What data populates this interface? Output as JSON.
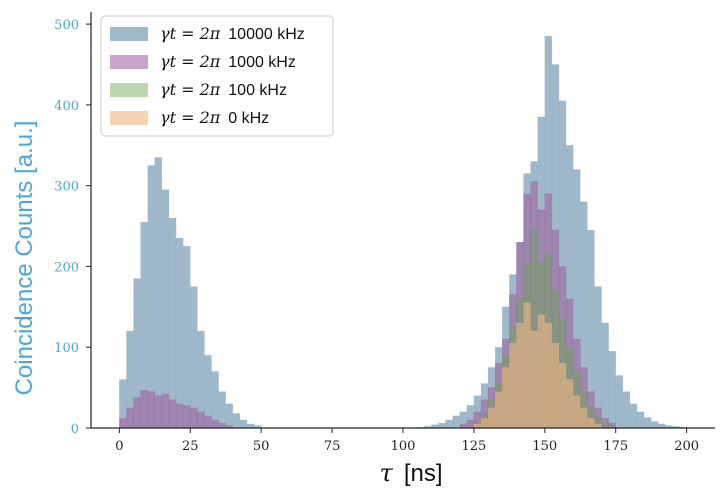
{
  "chart_data": {
    "type": "bar",
    "title": "",
    "xlabel_symbol": "τ",
    "xlabel_unit": "[ns]",
    "ylabel": "Coincidence Counts [a.u.]",
    "xlim": [
      -10,
      210
    ],
    "ylim": [
      0,
      515
    ],
    "xticks": [
      0,
      25,
      50,
      75,
      100,
      125,
      150,
      175,
      200
    ],
    "yticks": [
      0,
      100,
      200,
      300,
      400,
      500
    ],
    "bin_width": 2.5,
    "legend_position": "top-left",
    "grid": false,
    "series": [
      {
        "name_math": "γt = 2π",
        "name": "10000 kHz",
        "color": "#7fa2b8",
        "opacity": 0.75,
        "bins": [
          [
            0,
            60
          ],
          [
            2.5,
            120
          ],
          [
            5,
            185
          ],
          [
            7.5,
            255
          ],
          [
            10,
            325
          ],
          [
            12.5,
            335
          ],
          [
            15,
            295
          ],
          [
            17.5,
            260
          ],
          [
            20,
            235
          ],
          [
            22.5,
            225
          ],
          [
            25,
            175
          ],
          [
            27.5,
            120
          ],
          [
            30,
            90
          ],
          [
            32.5,
            70
          ],
          [
            35,
            45
          ],
          [
            37.5,
            30
          ],
          [
            40,
            18
          ],
          [
            42.5,
            10
          ],
          [
            45,
            5
          ],
          [
            47.5,
            3
          ],
          [
            105,
            1
          ],
          [
            107.5,
            2
          ],
          [
            110,
            4
          ],
          [
            112.5,
            6
          ],
          [
            115,
            10
          ],
          [
            117.5,
            15
          ],
          [
            120,
            20
          ],
          [
            122.5,
            28
          ],
          [
            125,
            40
          ],
          [
            127.5,
            55
          ],
          [
            130,
            75
          ],
          [
            132.5,
            100
          ],
          [
            135,
            150
          ],
          [
            137.5,
            190
          ],
          [
            140,
            230
          ],
          [
            142.5,
            315
          ],
          [
            145,
            330
          ],
          [
            147.5,
            385
          ],
          [
            150,
            485
          ],
          [
            152.5,
            450
          ],
          [
            155,
            405
          ],
          [
            157.5,
            350
          ],
          [
            160,
            320
          ],
          [
            162.5,
            280
          ],
          [
            165,
            245
          ],
          [
            167.5,
            175
          ],
          [
            170,
            130
          ],
          [
            172.5,
            95
          ],
          [
            175,
            65
          ],
          [
            177.5,
            45
          ],
          [
            180,
            30
          ],
          [
            182.5,
            20
          ],
          [
            185,
            13
          ],
          [
            187.5,
            8
          ],
          [
            190,
            5
          ],
          [
            192.5,
            3
          ],
          [
            195,
            2
          ],
          [
            197.5,
            1
          ]
        ]
      },
      {
        "name_math": "γt = 2π",
        "name": "1000 kHz",
        "color": "#9c5d9c",
        "opacity": 0.55,
        "bins": [
          [
            0,
            12
          ],
          [
            2.5,
            25
          ],
          [
            5,
            38
          ],
          [
            7.5,
            47
          ],
          [
            10,
            45
          ],
          [
            12.5,
            40
          ],
          [
            15,
            42
          ],
          [
            17.5,
            35
          ],
          [
            20,
            30
          ],
          [
            22.5,
            28
          ],
          [
            25,
            25
          ],
          [
            27.5,
            20
          ],
          [
            30,
            15
          ],
          [
            32.5,
            10
          ],
          [
            35,
            6
          ],
          [
            37.5,
            3
          ],
          [
            120,
            5
          ],
          [
            122.5,
            10
          ],
          [
            125,
            20
          ],
          [
            127.5,
            35
          ],
          [
            130,
            50
          ],
          [
            132.5,
            80
          ],
          [
            135,
            110
          ],
          [
            137.5,
            165
          ],
          [
            140,
            230
          ],
          [
            142.5,
            290
          ],
          [
            145,
            305
          ],
          [
            147.5,
            270
          ],
          [
            150,
            290
          ],
          [
            152.5,
            245
          ],
          [
            155,
            200
          ],
          [
            157.5,
            160
          ],
          [
            160,
            110
          ],
          [
            162.5,
            75
          ],
          [
            165,
            45
          ],
          [
            167.5,
            25
          ],
          [
            170,
            12
          ],
          [
            172.5,
            6
          ]
        ]
      },
      {
        "name_math": "γt = 2π",
        "name": "100 kHz",
        "color": "#6aa34f",
        "opacity": 0.45,
        "bins": [
          [
            125,
            8
          ],
          [
            127.5,
            18
          ],
          [
            130,
            35
          ],
          [
            132.5,
            55
          ],
          [
            135,
            90
          ],
          [
            137.5,
            125
          ],
          [
            140,
            160
          ],
          [
            142.5,
            205
          ],
          [
            145,
            245
          ],
          [
            147.5,
            205
          ],
          [
            150,
            215
          ],
          [
            152.5,
            170
          ],
          [
            155,
            135
          ],
          [
            157.5,
            100
          ],
          [
            160,
            70
          ],
          [
            162.5,
            45
          ],
          [
            165,
            25
          ],
          [
            167.5,
            12
          ],
          [
            170,
            5
          ]
        ]
      },
      {
        "name_math": "γt = 2π",
        "name": "0 kHz",
        "color": "#f0b584",
        "opacity": 0.6,
        "bins": [
          [
            125,
            5
          ],
          [
            127.5,
            12
          ],
          [
            130,
            25
          ],
          [
            132.5,
            45
          ],
          [
            135,
            75
          ],
          [
            137.5,
            105
          ],
          [
            140,
            130
          ],
          [
            142.5,
            155
          ],
          [
            145,
            120
          ],
          [
            147.5,
            140
          ],
          [
            150,
            130
          ],
          [
            152.5,
            105
          ],
          [
            155,
            80
          ],
          [
            157.5,
            60
          ],
          [
            160,
            40
          ],
          [
            162.5,
            25
          ],
          [
            165,
            12
          ],
          [
            167.5,
            5
          ]
        ]
      }
    ]
  }
}
